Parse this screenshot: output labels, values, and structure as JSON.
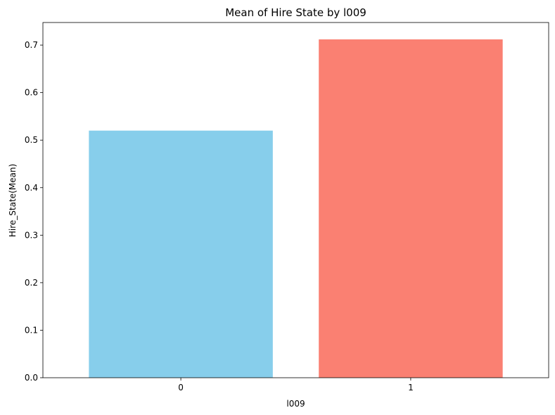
{
  "chart_data": {
    "type": "bar",
    "title": "Mean of Hire State by l009",
    "xlabel": "l009",
    "ylabel": "Hire_State(Mean)",
    "categories": [
      "0",
      "1"
    ],
    "values": [
      0.52,
      0.712
    ],
    "colors": [
      "#87CEEB",
      "#FA8072"
    ],
    "ylim": [
      0,
      0.7475
    ],
    "yticks": [
      0.0,
      0.1,
      0.2,
      0.3,
      0.4,
      0.5,
      0.6,
      0.7
    ],
    "ytick_labels": [
      "0.0",
      "0.1",
      "0.2",
      "0.3",
      "0.4",
      "0.5",
      "0.6",
      "0.7"
    ],
    "grid": false,
    "legend": "none"
  }
}
